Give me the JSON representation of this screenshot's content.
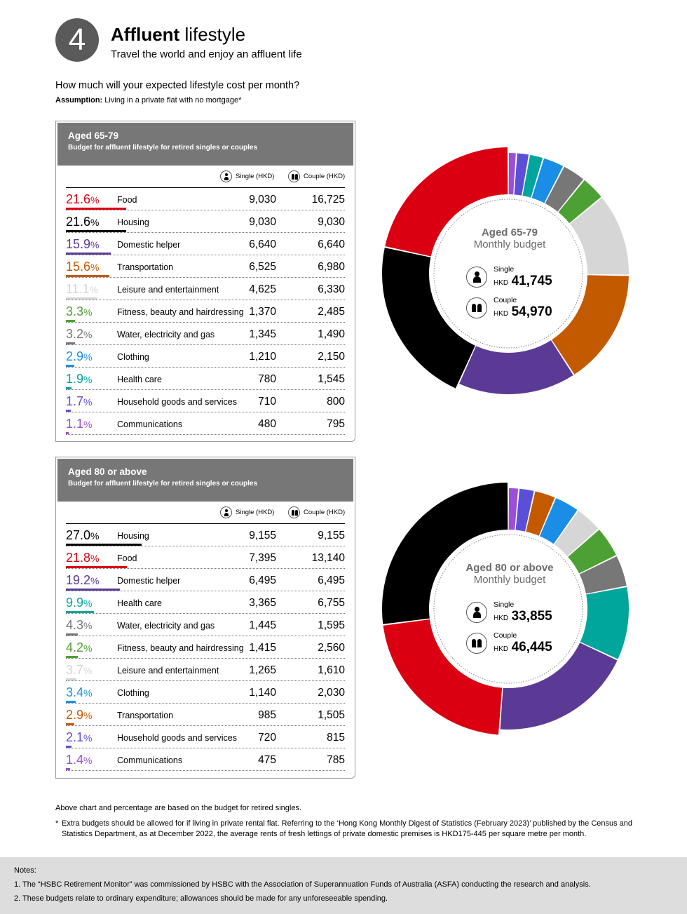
{
  "header": {
    "number": "4",
    "title_bold": "Affluent",
    "title_light": "lifestyle",
    "subtitle": "Travel the world and enjoy an affluent life"
  },
  "question": "How much will your expected lifestyle cost per month?",
  "assumption_label": "Assumption:",
  "assumption_text": "Living in a private flat with no mortgage*",
  "col_single": "Single (HKD)",
  "col_couple": "Couple (HKD)",
  "colors": {
    "Food": "#db0011",
    "Housing": "#000000",
    "Domestic helper": "#5b3a96",
    "Transportation": "#c45a00",
    "Leisure and entertainment": "#d6d6d6",
    "Fitness, beauty and hairdressing": "#4da033",
    "Water, electricity and gas": "#777777",
    "Clothing": "#1a8ee6",
    "Health care": "#00a59b",
    "Household goods and services": "#5a4fd6",
    "Communications": "#9c4fd6"
  },
  "chart_data": [
    {
      "type": "pie",
      "title": "Aged 65-79",
      "subtitle": "Budget for affluent lifestyle for retired singles or couples",
      "center_title": "Aged 65-79",
      "center_sub": "Monthly budget",
      "single_label": "Single",
      "couple_label": "Couple",
      "currency": "HKD",
      "single_total": "41,745",
      "couple_total": "54,970",
      "rows": [
        {
          "pct": "21.6",
          "category": "Food",
          "single": "9,030",
          "couple": "16,725",
          "value": 21.6
        },
        {
          "pct": "21.6",
          "category": "Housing",
          "single": "9,030",
          "couple": "9,030",
          "value": 21.6
        },
        {
          "pct": "15.9",
          "category": "Domestic helper",
          "single": "6,640",
          "couple": "6,640",
          "value": 15.9
        },
        {
          "pct": "15.6",
          "category": "Transportation",
          "single": "6,525",
          "couple": "6,980",
          "value": 15.6
        },
        {
          "pct": "11.1",
          "category": "Leisure and entertainment",
          "single": "4,625",
          "couple": "6,330",
          "value": 11.1
        },
        {
          "pct": "3.3",
          "category": "Fitness, beauty and hairdressing",
          "single": "1,370",
          "couple": "2,485",
          "value": 3.3
        },
        {
          "pct": "3.2",
          "category": "Water, electricity and gas",
          "single": "1,345",
          "couple": "1,490",
          "value": 3.2
        },
        {
          "pct": "2.9",
          "category": "Clothing",
          "single": "1,210",
          "couple": "2,150",
          "value": 2.9
        },
        {
          "pct": "1.9",
          "category": "Health care",
          "single": "780",
          "couple": "1,545",
          "value": 1.9
        },
        {
          "pct": "1.7",
          "category": "Household goods and services",
          "single": "710",
          "couple": "800",
          "value": 1.7
        },
        {
          "pct": "1.1",
          "category": "Communications",
          "single": "480",
          "couple": "795",
          "value": 1.1
        }
      ],
      "donut_order": [
        "Communications",
        "Household goods and services",
        "Health care",
        "Clothing",
        "Water, electricity and gas",
        "Fitness, beauty and hairdressing",
        "Leisure and entertainment",
        "Transportation",
        "Domestic helper",
        "Housing",
        "Food"
      ]
    },
    {
      "type": "pie",
      "title": "Aged 80 or above",
      "subtitle": "Budget for affluent lifestyle for retired singles or couples",
      "center_title": "Aged 80 or above",
      "center_sub": "Monthly budget",
      "single_label": "Single",
      "couple_label": "Couple",
      "currency": "HKD",
      "single_total": "33,855",
      "couple_total": "46,445",
      "rows": [
        {
          "pct": "27.0",
          "category": "Housing",
          "single": "9,155",
          "couple": "9,155",
          "value": 27.0
        },
        {
          "pct": "21.8",
          "category": "Food",
          "single": "7,395",
          "couple": "13,140",
          "value": 21.8
        },
        {
          "pct": "19.2",
          "category": "Domestic helper",
          "single": "6,495",
          "couple": "6,495",
          "value": 19.2
        },
        {
          "pct": "9.9",
          "category": "Health care",
          "single": "3,365",
          "couple": "6,755",
          "value": 9.9
        },
        {
          "pct": "4.3",
          "category": "Water, electricity and gas",
          "single": "1,445",
          "couple": "1,595",
          "value": 4.3
        },
        {
          "pct": "4.2",
          "category": "Fitness, beauty and hairdressing",
          "single": "1,415",
          "couple": "2,560",
          "value": 4.2
        },
        {
          "pct": "3.7",
          "category": "Leisure and entertainment",
          "single": "1,265",
          "couple": "1,610",
          "value": 3.7
        },
        {
          "pct": "3.4",
          "category": "Clothing",
          "single": "1,140",
          "couple": "2,030",
          "value": 3.4
        },
        {
          "pct": "2.9",
          "category": "Transportation",
          "single": "985",
          "couple": "1,505",
          "value": 2.9
        },
        {
          "pct": "2.1",
          "category": "Household goods and services",
          "single": "720",
          "couple": "815",
          "value": 2.1
        },
        {
          "pct": "1.4",
          "category": "Communications",
          "single": "475",
          "couple": "785",
          "value": 1.4
        }
      ],
      "donut_order": [
        "Communications",
        "Household goods and services",
        "Transportation",
        "Clothing",
        "Leisure and entertainment",
        "Fitness, beauty and hairdressing",
        "Water, electricity and gas",
        "Health care",
        "Domestic helper",
        "Food",
        "Housing"
      ]
    }
  ],
  "footnote1": "Above chart and percentage are based on the budget for retired singles.",
  "footnote2_bullet": "*",
  "footnote2": "Extra budgets should be allowed for if living in private rental flat. Referring to the ‘Hong Kong Monthly Digest of Statistics (February 2023)’ published by the Census and Statistics Department, as at December 2022, the average rents of fresh lettings of private domestic premises is HKD175-445 per square metre per month.",
  "notes": {
    "label": "Notes:",
    "n1": "1. The “HSBC Retirement Monitor” was commissioned by HSBC with the Association of Superannuation Funds of Australia (ASFA) conducting the research and analysis.",
    "n2": "2. These budgets relate to ordinary expenditure; allowances should be made for any unforeseeable spending."
  }
}
